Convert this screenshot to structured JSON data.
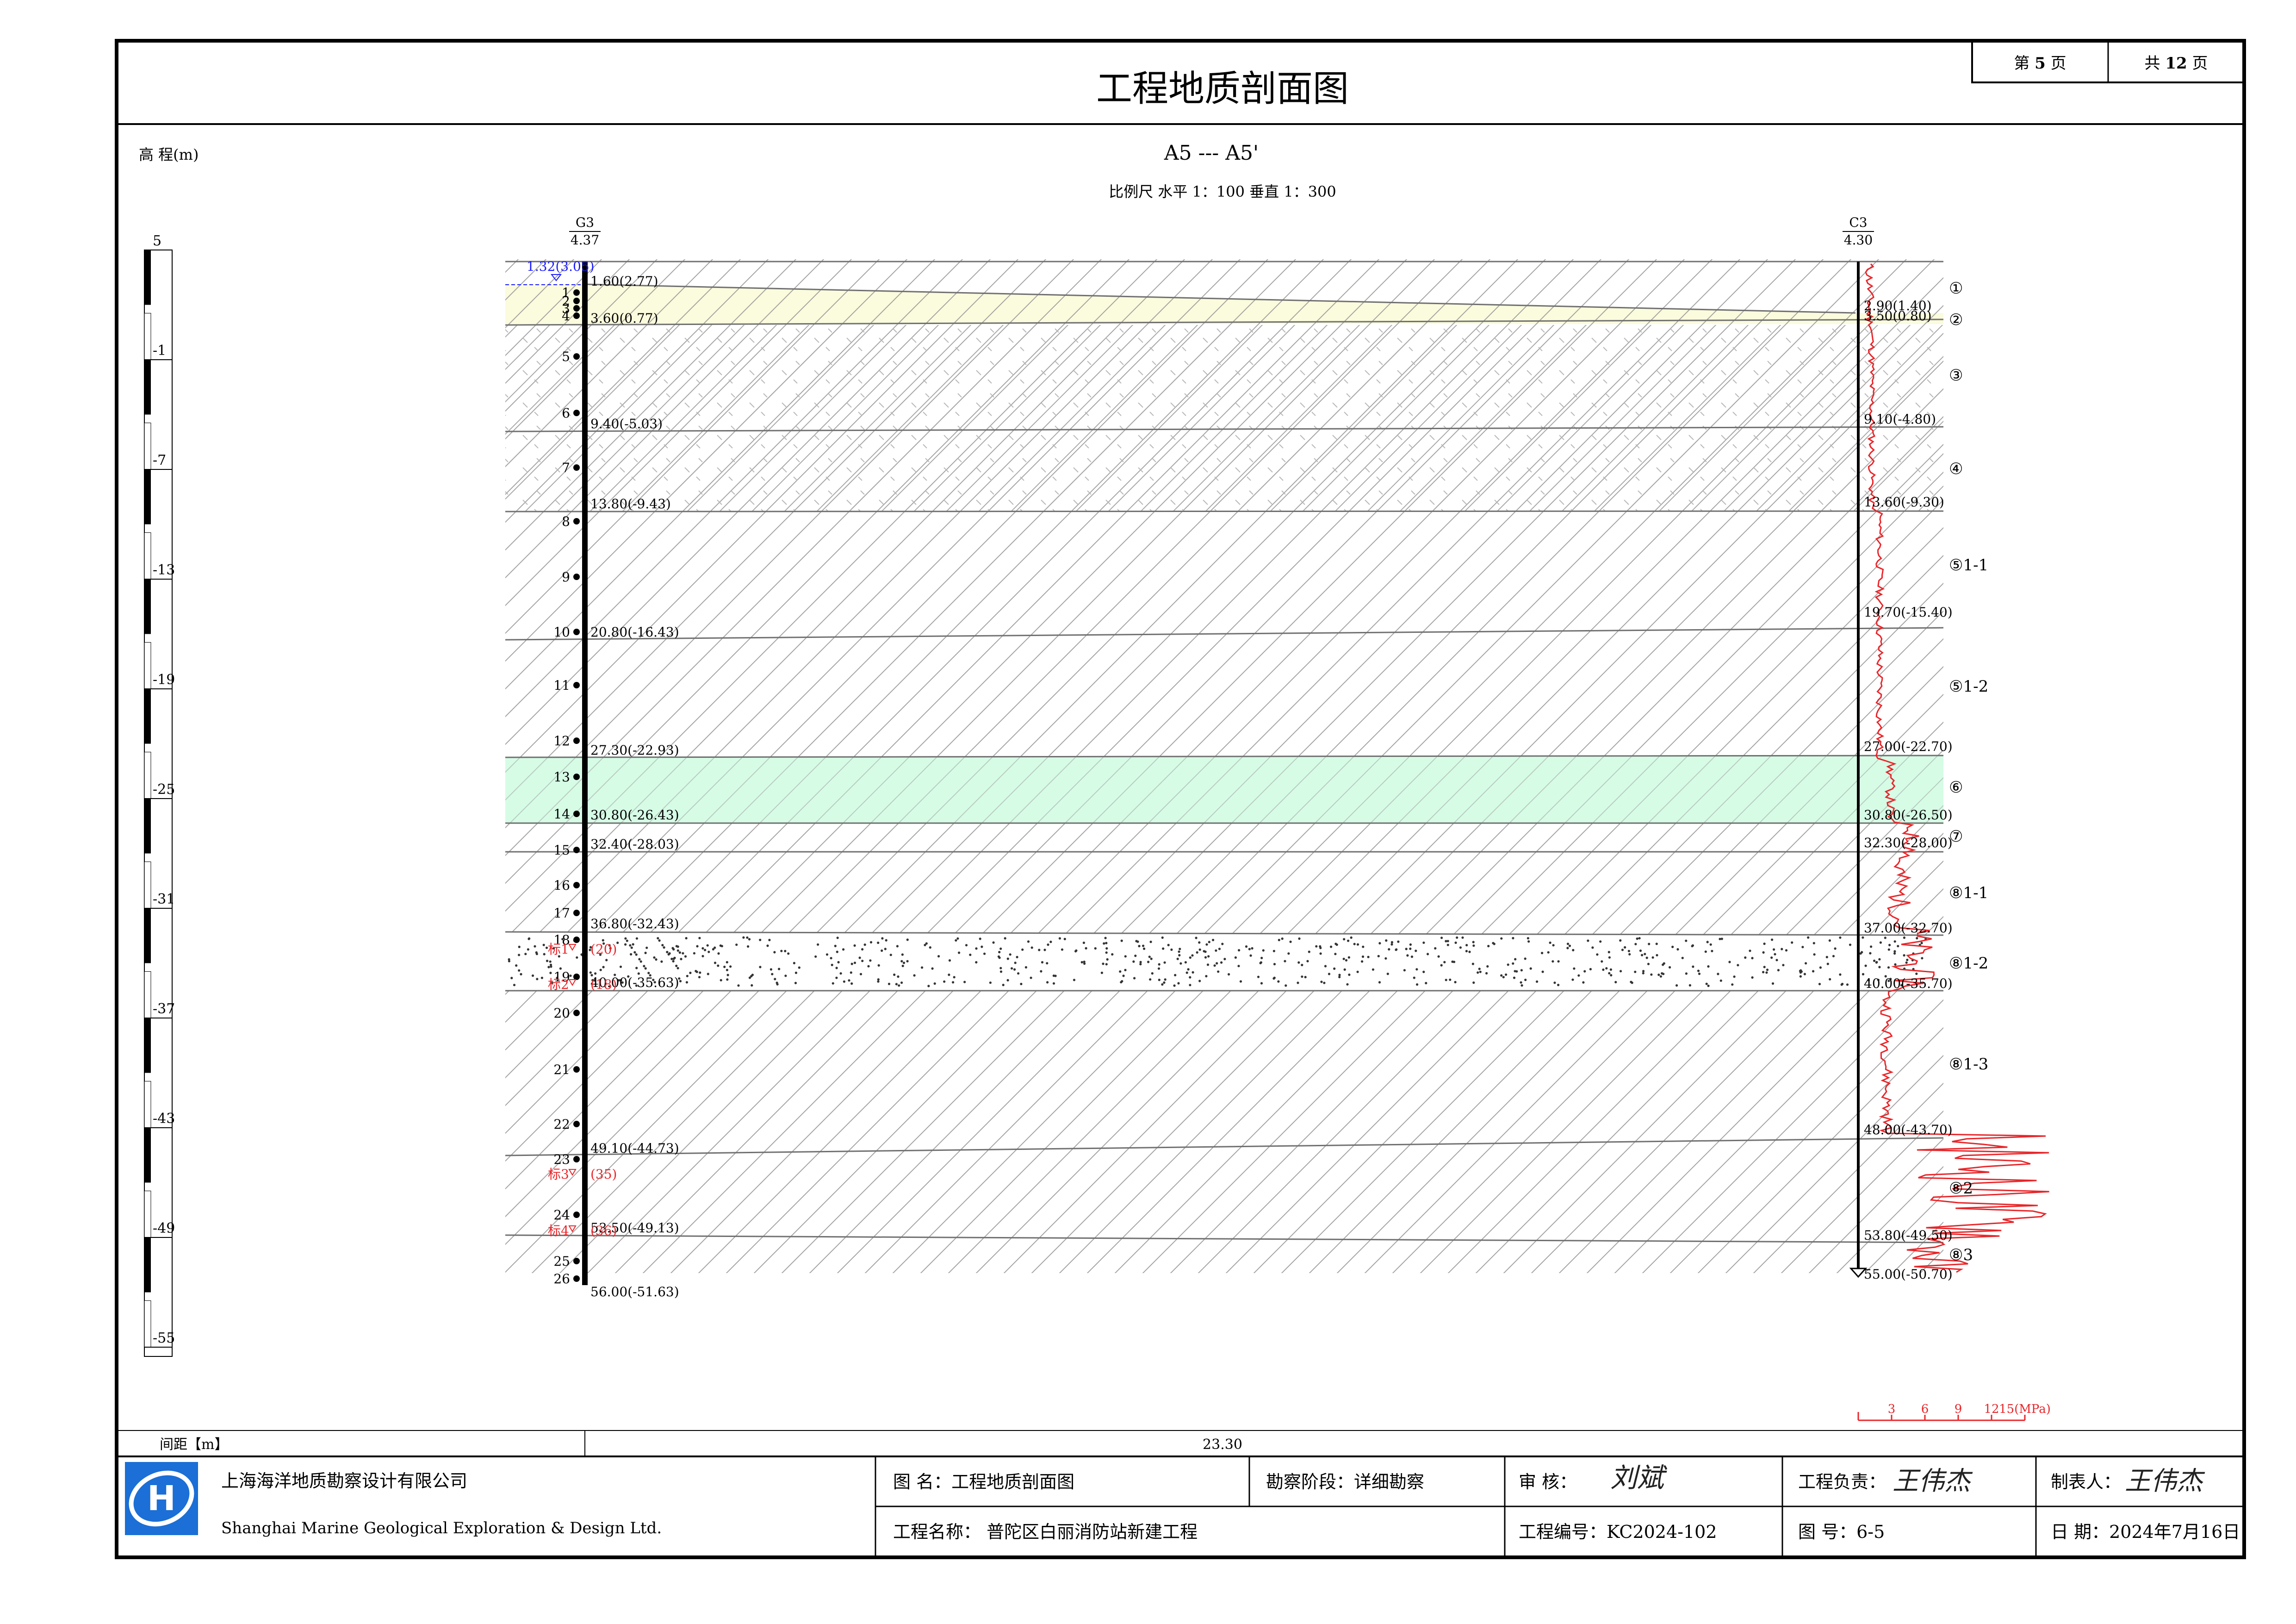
{
  "sheet": {
    "title": "工程地质剖面图",
    "page_label": "第",
    "page_no": "5",
    "page_unit": "页",
    "total_label": "共",
    "total_no": "12",
    "total_unit": "页",
    "section_name": "A5  ---  A5'",
    "scale_text": "比例尺    水平   1：100    垂直   1：300",
    "elevation_label": "高 程(m)"
  },
  "elevation_ticks": [
    "5",
    "-1",
    "-7",
    "-13",
    "-19",
    "-25",
    "-31",
    "-37",
    "-43",
    "-49",
    "-55"
  ],
  "boreholes": [
    {
      "id": "G3",
      "elevation": "4.37",
      "water_level": "1.32(3.05)",
      "layers": [
        "1.60(2.77)",
        "3.60(0.77)",
        "9.40(-5.03)",
        "13.80(-9.43)",
        "20.80(-16.43)",
        "27.30(-22.93)",
        "30.80(-26.43)",
        "32.40(-28.03)",
        "36.80(-32.43)",
        "40.00(-35.63)",
        "49.10(-44.73)",
        "53.50(-49.13)",
        "56.00(-51.63)"
      ],
      "samples": [
        "1",
        "2",
        "3",
        "4",
        "5",
        "6",
        "7",
        "8",
        "9",
        "10",
        "11",
        "12",
        "13",
        "14",
        "15",
        "16",
        "17",
        "18",
        "19",
        "20",
        "21",
        "22",
        "23",
        "24",
        "25",
        "26"
      ],
      "spt": [
        {
          "label": "标1",
          "value": "(20)"
        },
        {
          "label": "标2",
          "value": "(18)"
        },
        {
          "label": "标3",
          "value": "(35)"
        },
        {
          "label": "标4",
          "value": "(36)"
        }
      ]
    },
    {
      "id": "C3",
      "elevation": "4.30",
      "layers": [
        "2.90(1.40)",
        "3.50(0.80)",
        "9.10(-4.80)",
        "13.60(-9.30)",
        "19.70(-15.40)",
        "27.00(-22.70)",
        "30.80(-26.50)",
        "32.30(-28.00)",
        "37.00(-32.70)",
        "40.00(-35.70)",
        "48.00(-43.70)",
        "53.80(-49.50)",
        "55.00(-50.70)"
      ]
    }
  ],
  "strata_labels": [
    "①",
    "②",
    "③",
    "④",
    "⑤1-1",
    "⑤1-2",
    "⑥",
    "⑦",
    "⑧1-1",
    "⑧1-2",
    "⑧1-3",
    "⑧2",
    "⑧3"
  ],
  "cpt_axis": {
    "ticks": [
      "3",
      "6",
      "9",
      "12",
      "15(MPa)"
    ]
  },
  "spacing": {
    "label": "间距【m】",
    "value": "23.30"
  },
  "title_block": {
    "company_cn": "上海海洋地质勘察设计有限公司",
    "company_en": "Shanghai Marine Geological Exploration & Design Ltd.",
    "logo_letter": "H",
    "drawing_name": "图    名：工程地质剖面图",
    "stage": "勘察阶段：详细勘察",
    "reviewer": "审    核：",
    "reviewer_sig": "刘斌",
    "project_lead": "工程负责：",
    "project_lead_sig": "王伟杰",
    "drafter": "制表人：",
    "drafter_sig": "王伟杰",
    "project_name": "工程名称：  普陀区白丽消防站新建工程",
    "project_no": "工程编号：KC2024-102",
    "drawing_no": "图    号：6-5",
    "date": "日  期：2024年7月16日"
  },
  "colors": {
    "fill_clay_top": "#fbfbdd",
    "fill_layer6": "#d6fce6",
    "cpt_curve": "#e8262a",
    "spt_text": "#e8262a",
    "water_blue": "#1a1aff",
    "logo_blue": "#1b6fd6"
  }
}
